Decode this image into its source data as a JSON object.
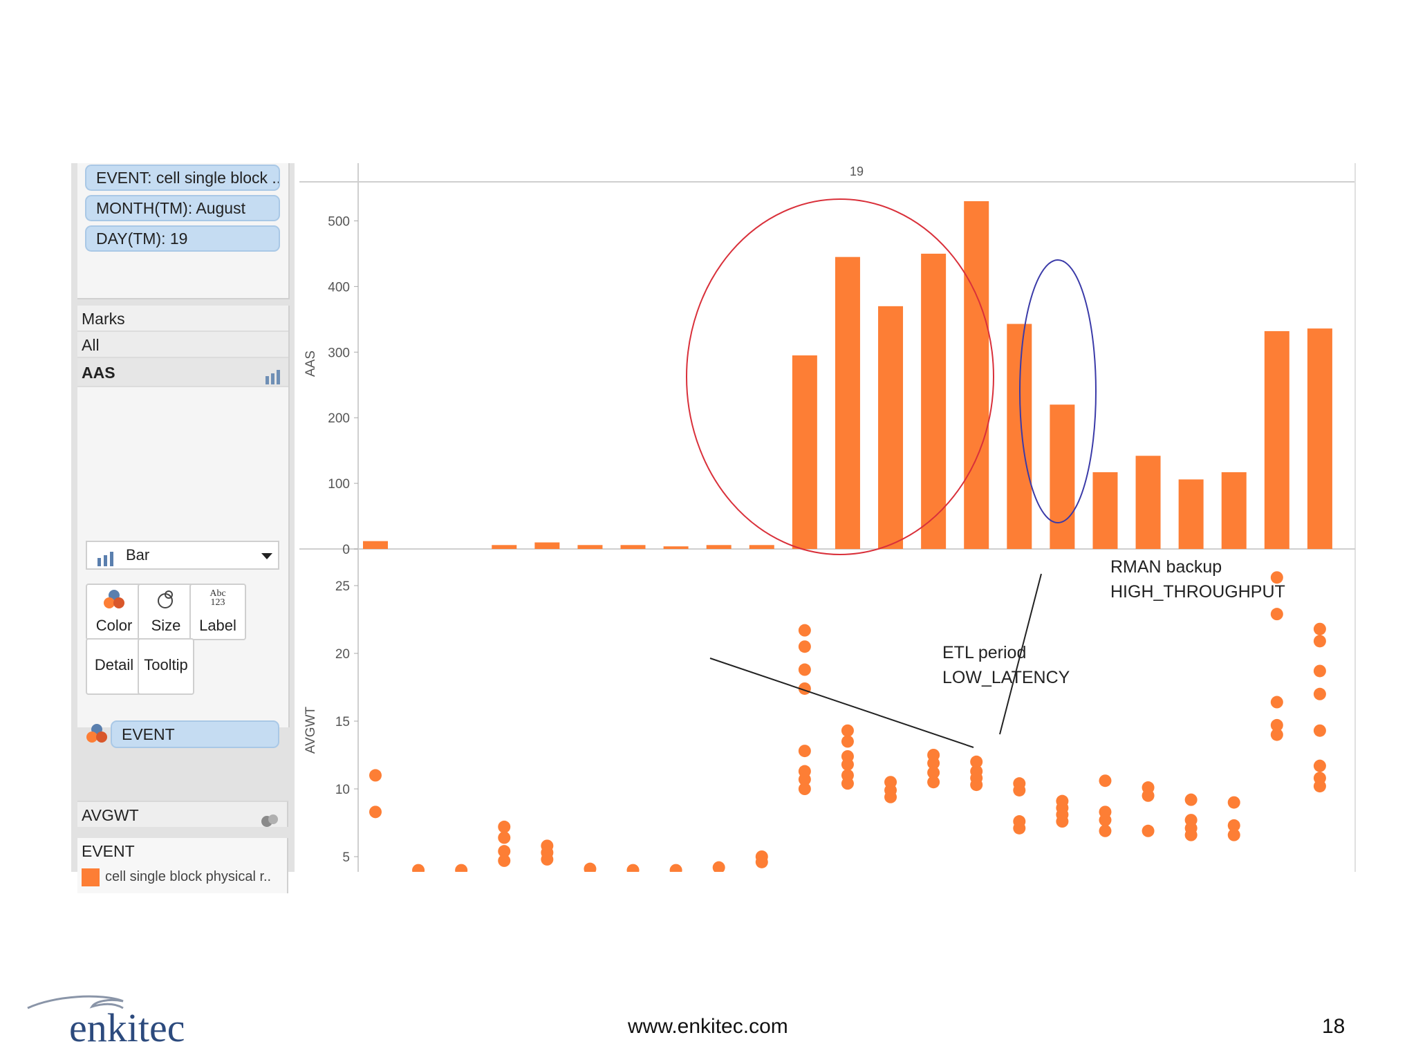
{
  "filters": [
    "EVENT: cell single block ..",
    "MONTH(TM): August",
    "DAY(TM): 19"
  ],
  "marks": {
    "header": "Marks",
    "all_label": "All",
    "aas_label": "AAS",
    "mark_type": "Bar",
    "buttons": {
      "color": "Color",
      "size": "Size",
      "label": "Label",
      "detail": "Detail",
      "tooltip": "Tooltip"
    },
    "label_icon_text": {
      "abc": "Abc",
      "num": "123"
    },
    "color_field": "EVENT",
    "avgwt_label": "AVGWT"
  },
  "legend": {
    "title": "EVENT",
    "item": "cell single block physical r..",
    "color": "#fd7e35"
  },
  "chart_data": {
    "type": "bar",
    "column_header": "19",
    "bar_color": "#fd7e35",
    "top_panel": {
      "ylabel": "AAS",
      "ylim": [
        0,
        530
      ],
      "yticks": [
        0,
        100,
        200,
        300,
        400,
        500
      ],
      "values": [
        12,
        0,
        0,
        6,
        10,
        6,
        6,
        4,
        6,
        6,
        295,
        445,
        370,
        450,
        530,
        343,
        220,
        117,
        142,
        106,
        117,
        332,
        336
      ]
    },
    "bottom_panel": {
      "type": "scatter",
      "ylabel": "AVGWT",
      "ylim": [
        3.7,
        27
      ],
      "yticks": [
        5,
        10,
        15,
        20,
        25
      ],
      "points": [
        [
          [
            11,
            8.3
          ]
        ],
        [
          [
            4
          ]
        ],
        [
          [
            4
          ]
        ],
        [
          [
            7.2,
            6.4,
            5.4,
            4.7
          ]
        ],
        [
          [
            5.8,
            5.3,
            4.8
          ]
        ],
        [
          [
            4.1
          ]
        ],
        [
          [
            4
          ]
        ],
        [
          [
            4
          ]
        ],
        [
          [
            4.2
          ]
        ],
        [
          [
            5,
            4.6
          ]
        ],
        [
          [
            21.7,
            20.5,
            18.8,
            17.4,
            12.8,
            11.3,
            10.7,
            10
          ]
        ],
        [
          [
            14.3,
            13.5,
            12.4,
            11.8,
            11,
            10.4
          ]
        ],
        [
          [
            10.5,
            9.9,
            9.4
          ]
        ],
        [
          [
            12.5,
            11.9,
            11.2,
            10.5
          ]
        ],
        [
          [
            12,
            11.3,
            10.8,
            10.3
          ]
        ],
        [
          [
            10.4,
            9.9,
            7.6,
            7.1
          ]
        ],
        [
          [
            9.1,
            8.6,
            8.1,
            7.6
          ]
        ],
        [
          [
            10.6,
            8.3,
            7.7,
            6.9
          ]
        ],
        [
          [
            10.1,
            9.5,
            6.9
          ]
        ],
        [
          [
            9.2,
            7.7,
            7.1,
            6.6
          ]
        ],
        [
          [
            9,
            7.3,
            6.6
          ]
        ],
        [
          [
            25.6,
            22.9,
            16.4,
            14.7,
            14
          ]
        ],
        [
          [
            21.8,
            20.9,
            18.7,
            17,
            14.3,
            11.7,
            10.8,
            10.2
          ]
        ]
      ]
    },
    "annotations": {
      "etl": [
        "ETL period",
        "LOW_LATENCY"
      ],
      "rman": [
        "RMAN backup",
        "HIGH_THROUGHPUT"
      ]
    }
  },
  "footer": {
    "url": "www.enkitec.com",
    "page": "18",
    "logo_text": "enkitec"
  }
}
